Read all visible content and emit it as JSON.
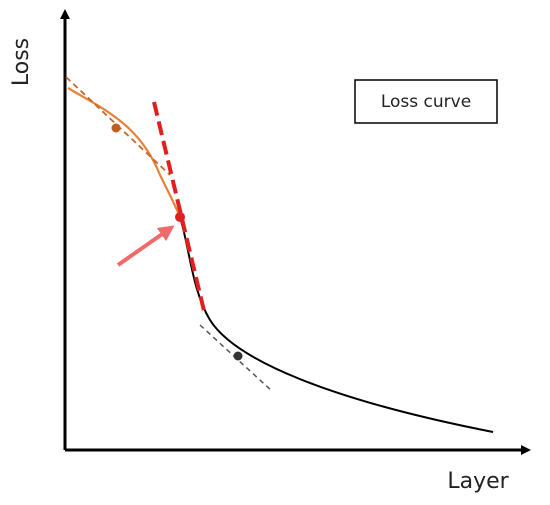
{
  "axes": {
    "y_label": "Loss",
    "x_label": "Layer"
  },
  "legend": {
    "label": "Loss curve"
  }
}
